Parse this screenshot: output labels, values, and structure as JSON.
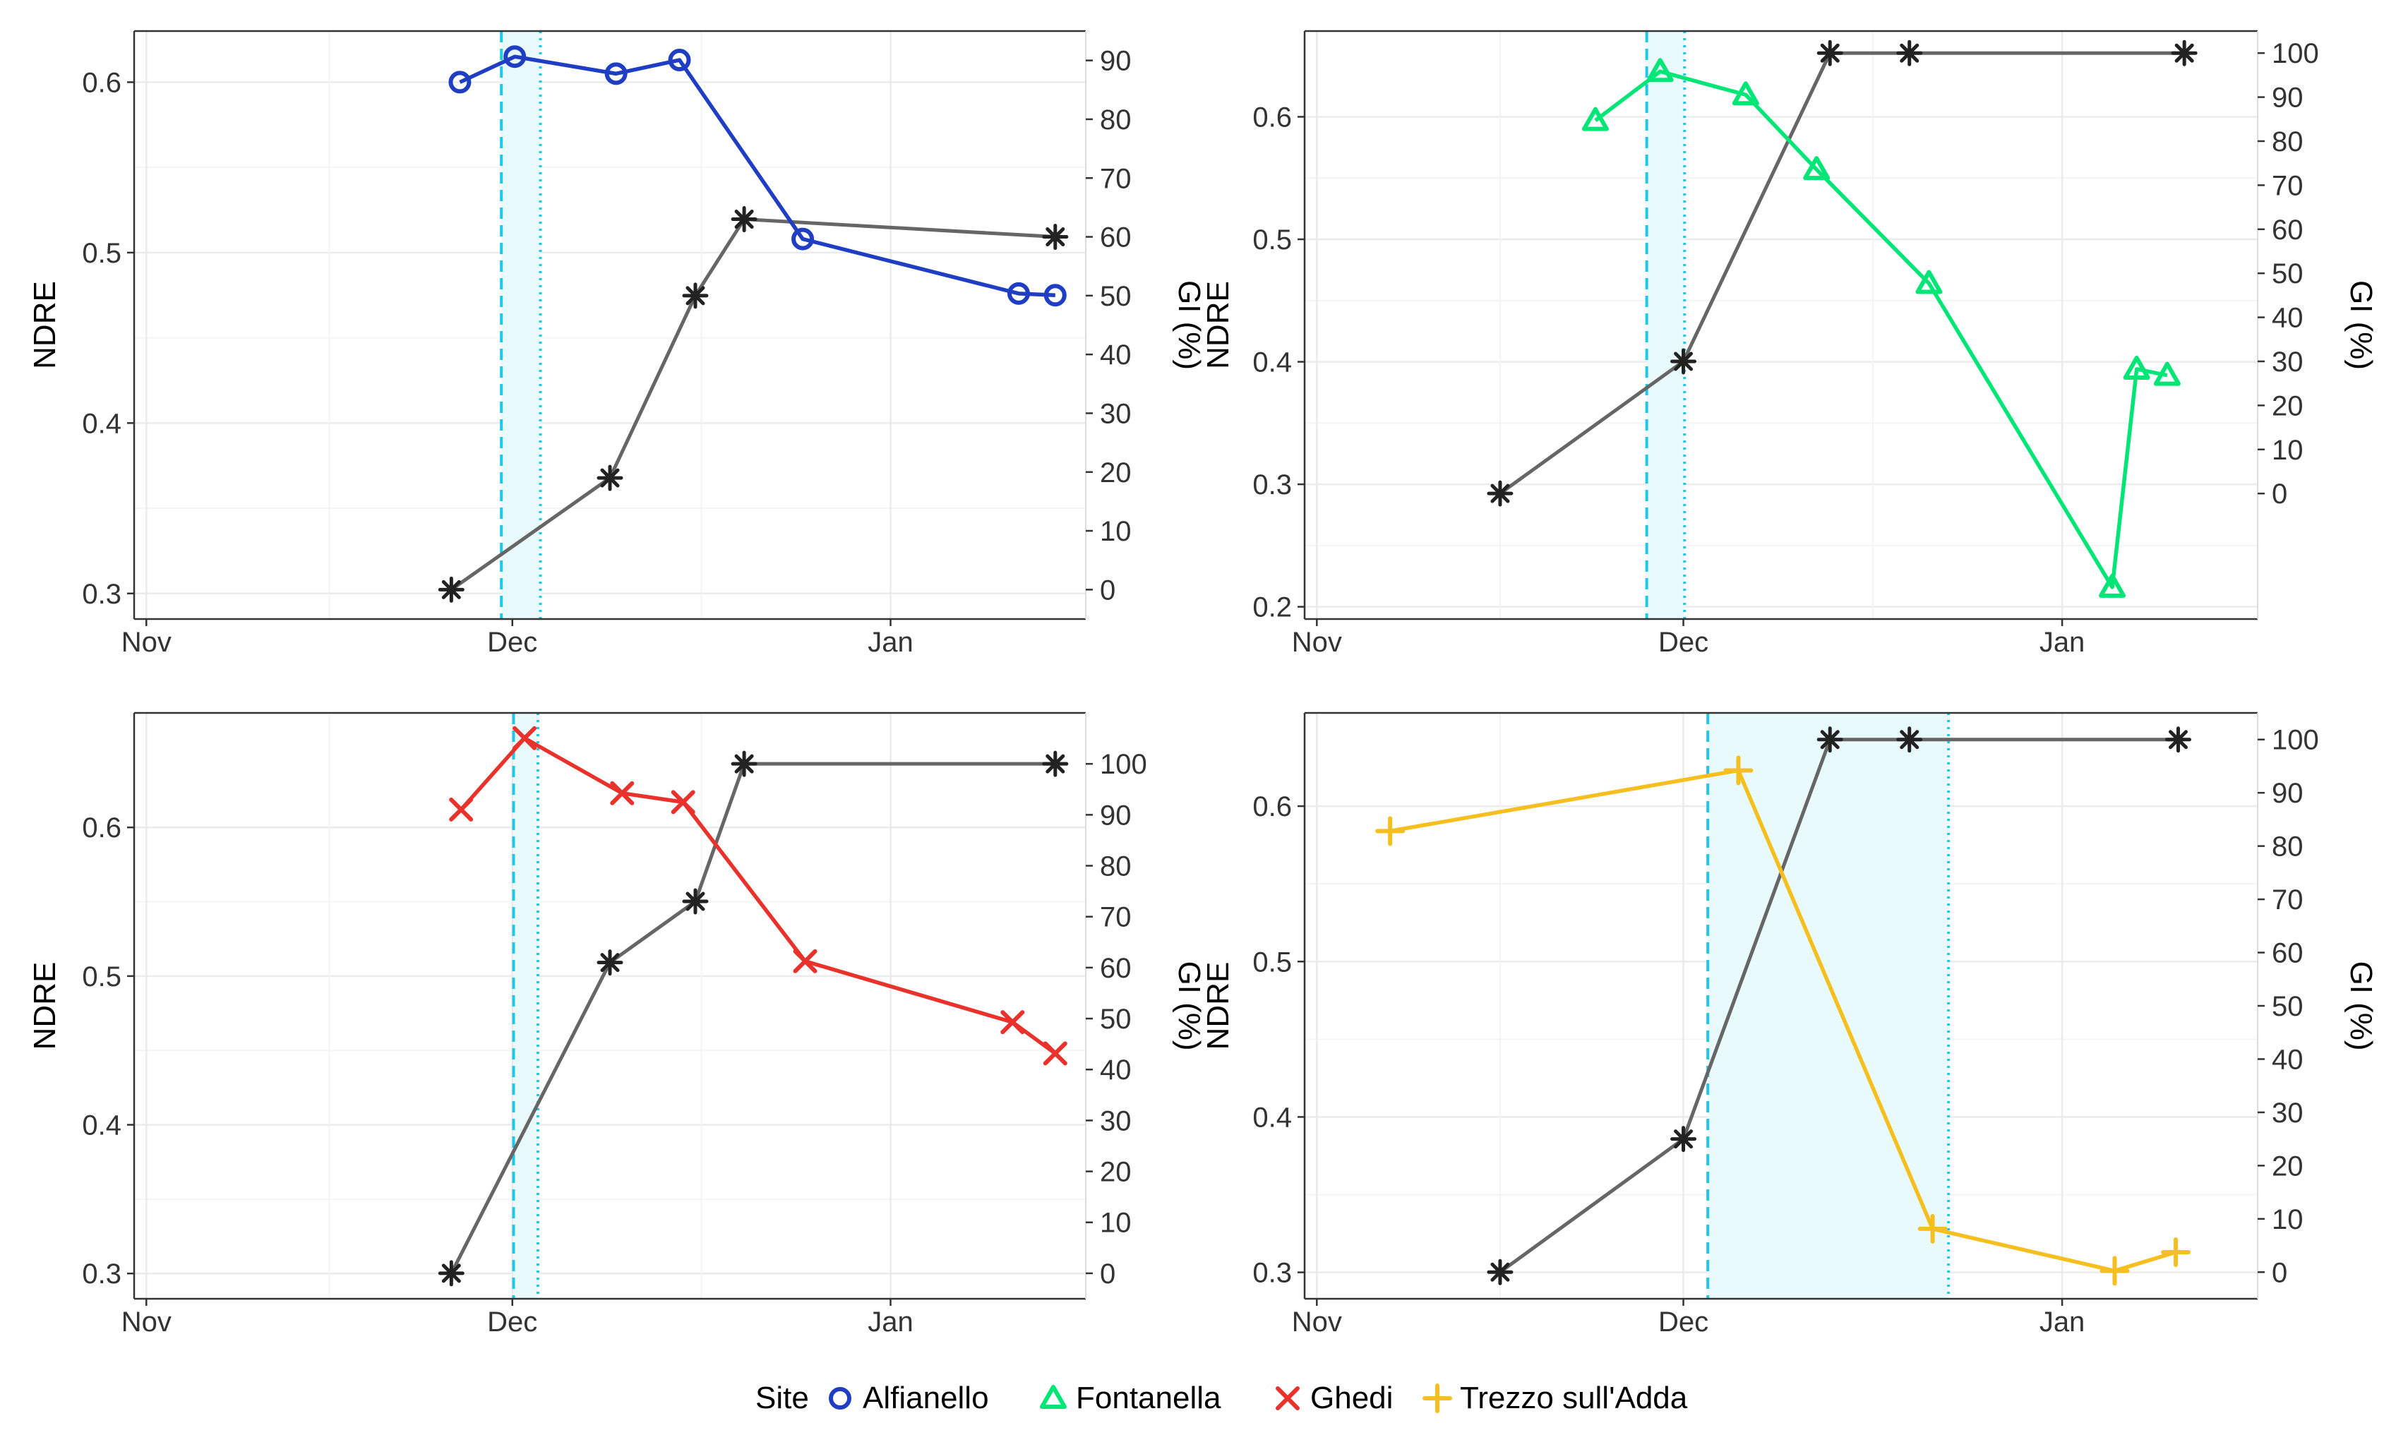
{
  "colors": {
    "ndre_Alfianello": "#1f3ec4",
    "ndre_Fontanella": "#00e676",
    "ndre_Ghedi": "#e8322b",
    "ndre_Trezzo": "#f5bf1f",
    "gi_line": "#666666",
    "gi_marker": "#222222",
    "window_line": "#1ec8e6",
    "window_fill": "#e9fafd",
    "grid": "#ebebeb",
    "panel_border": "#333333"
  },
  "legend": {
    "title": "Site",
    "items": [
      {
        "label": "Alfianello",
        "marker": "circle",
        "color": "#1f3ec4"
      },
      {
        "label": "Fontanella",
        "marker": "triangle",
        "color": "#00e676"
      },
      {
        "label": "Ghedi",
        "marker": "cross",
        "color": "#e8322b"
      },
      {
        "label": "Trezzo sull'Adda",
        "marker": "plus",
        "color": "#f5bf1f"
      }
    ]
  },
  "chart_data": [
    {
      "type": "line",
      "site": "Alfianello",
      "xlabel_ticks": [
        "Nov",
        "Dec",
        "Jan"
      ],
      "x_ticks_day": [
        0,
        30,
        61
      ],
      "xlim_day": [
        -1,
        77
      ],
      "ylabel": "NDRE",
      "ylim": [
        0.285,
        0.63
      ],
      "yticks": [
        "0.3",
        "0.4",
        "0.5",
        "0.6"
      ],
      "yticks_values": [
        0.3,
        0.4,
        0.5,
        0.6
      ],
      "y2label": "GI (%)",
      "y2lim": [
        -5,
        95
      ],
      "y2ticks": [
        "0",
        "10",
        "20",
        "30",
        "40",
        "50",
        "60",
        "70",
        "80",
        "90"
      ],
      "y2ticks_values": [
        0,
        10,
        20,
        30,
        40,
        50,
        60,
        70,
        80,
        90
      ],
      "window": {
        "start_day": 29.1,
        "end_day": 32.3
      },
      "ndre_series": {
        "name": "Alfianello",
        "marker": "circle",
        "x": [
          25.7,
          30.2,
          38.5,
          43.7,
          53.8,
          71.5,
          74.5
        ],
        "y": [
          0.6,
          0.615,
          0.605,
          0.613,
          0.508,
          0.476,
          0.475
        ]
      },
      "gi_series": {
        "name": "GI",
        "marker": "asterisk",
        "x": [
          25,
          38,
          45,
          49,
          74.5
        ],
        "y": [
          0,
          19,
          50,
          63,
          60
        ]
      }
    },
    {
      "type": "line",
      "site": "Fontanella",
      "xlabel_ticks": [
        "Nov",
        "Dec",
        "Jan"
      ],
      "x_ticks_day": [
        0,
        30,
        61
      ],
      "xlim_day": [
        -1,
        77
      ],
      "ylabel": "NDRE",
      "ylim": [
        0.19,
        0.67
      ],
      "yticks": [
        "0.2",
        "0.3",
        "0.4",
        "0.5",
        "0.6"
      ],
      "yticks_values": [
        0.2,
        0.3,
        0.4,
        0.5,
        0.6
      ],
      "y2label": "GI (%)",
      "y2lim": [
        -28.5,
        105
      ],
      "y2ticks": [
        "0",
        "10",
        "20",
        "30",
        "40",
        "50",
        "60",
        "70",
        "80",
        "90",
        "100"
      ],
      "y2ticks_values": [
        0,
        10,
        20,
        30,
        40,
        50,
        60,
        70,
        80,
        90,
        100
      ],
      "window": {
        "start_day": 27,
        "end_day": 30.1
      },
      "ndre_series": {
        "name": "Fontanella",
        "marker": "triangle",
        "x": [
          22.8,
          28.1,
          35.1,
          40.9,
          50.1,
          65.1,
          67.1,
          69.6
        ],
        "y": [
          0.597,
          0.637,
          0.618,
          0.557,
          0.464,
          0.216,
          0.394,
          0.389
        ]
      },
      "gi_series": {
        "name": "GI",
        "marker": "asterisk",
        "x": [
          15,
          30,
          42,
          48.5,
          71
        ],
        "y": [
          0,
          30,
          100,
          100,
          100
        ]
      }
    },
    {
      "type": "line",
      "site": "Ghedi",
      "xlabel_ticks": [
        "Nov",
        "Dec",
        "Jan"
      ],
      "x_ticks_day": [
        0,
        30,
        61
      ],
      "xlim_day": [
        -1,
        77
      ],
      "ylabel": "NDRE",
      "ylim": [
        0.283,
        0.677
      ],
      "yticks": [
        "0.3",
        "0.4",
        "0.5",
        "0.6"
      ],
      "yticks_values": [
        0.3,
        0.4,
        0.5,
        0.6
      ],
      "y2label": "GI (%)",
      "y2lim": [
        -5,
        110
      ],
      "y2ticks": [
        "0",
        "10",
        "20",
        "30",
        "40",
        "50",
        "60",
        "70",
        "80",
        "90",
        "100"
      ],
      "y2ticks_values": [
        0,
        10,
        20,
        30,
        40,
        50,
        60,
        70,
        80,
        90,
        100
      ],
      "window": {
        "start_day": 30.1,
        "end_day": 32.1
      },
      "ndre_series": {
        "name": "Ghedi",
        "marker": "cross",
        "x": [
          25.8,
          31,
          39,
          44,
          54,
          71,
          74.5
        ],
        "y": [
          0.612,
          0.66,
          0.623,
          0.617,
          0.51,
          0.469,
          0.448
        ]
      },
      "gi_series": {
        "name": "GI",
        "marker": "asterisk",
        "x": [
          25,
          38,
          45,
          49,
          74.5
        ],
        "y": [
          0,
          61,
          73,
          100,
          100
        ]
      }
    },
    {
      "type": "line",
      "site": "Trezzo sull'Adda",
      "xlabel_ticks": [
        "Nov",
        "Dec",
        "Jan"
      ],
      "x_ticks_day": [
        0,
        30,
        61
      ],
      "xlim_day": [
        -1,
        77
      ],
      "ylabel": "NDRE",
      "ylim": [
        0.283,
        0.66
      ],
      "yticks": [
        "0.3",
        "0.4",
        "0.5",
        "0.6"
      ],
      "yticks_values": [
        0.3,
        0.4,
        0.5,
        0.6
      ],
      "y2label": "GI (%)",
      "y2lim": [
        -5,
        105
      ],
      "y2ticks": [
        "0",
        "10",
        "20",
        "30",
        "40",
        "50",
        "60",
        "70",
        "80",
        "90",
        "100"
      ],
      "y2ticks_values": [
        0,
        10,
        20,
        30,
        40,
        50,
        60,
        70,
        80,
        90,
        100
      ],
      "window": {
        "start_day": 32,
        "end_day": 51.7
      },
      "ndre_series": {
        "name": "Trezzo sull'Adda",
        "marker": "plus",
        "x": [
          6,
          34.5,
          50.4,
          65.3,
          70.3
        ],
        "y": [
          0.584,
          0.623,
          0.328,
          0.301,
          0.313
        ]
      },
      "gi_series": {
        "name": "GI",
        "marker": "asterisk",
        "x": [
          15,
          30,
          42,
          48.5,
          70.5
        ],
        "y": [
          0,
          25,
          100,
          100,
          100
        ]
      }
    }
  ]
}
